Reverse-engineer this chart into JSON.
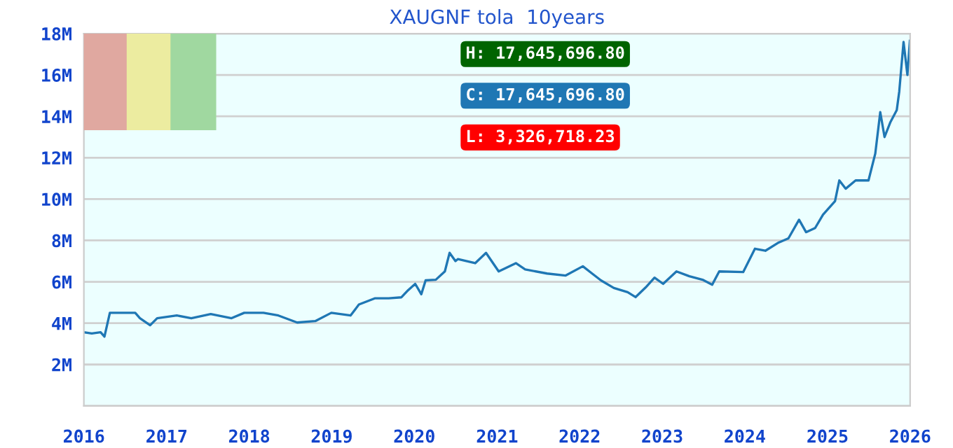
{
  "chart_data": {
    "type": "line",
    "title": "XAUGNF tola  10years",
    "x": [
      "2016-01-01",
      "2016-02-05",
      "2016-03-15",
      "2016-04-01",
      "2016-04-25",
      "2016-06-10",
      "2016-08-15",
      "2016-09-05",
      "2016-10-20",
      "2016-11-20",
      "2017-02-15",
      "2017-04-20",
      "2017-07-15",
      "2017-10-15",
      "2017-12-10",
      "2018-03-05",
      "2018-05-10",
      "2018-08-01",
      "2018-10-20",
      "2018-12-30",
      "2019-03-25",
      "2019-05-01",
      "2019-07-10",
      "2019-09-10",
      "2019-11-05",
      "2019-12-05",
      "2020-01-05",
      "2020-02-01",
      "2020-02-20",
      "2020-04-05",
      "2020-05-15",
      "2020-06-05",
      "2020-07-01",
      "2020-07-12",
      "2020-09-26",
      "2020-11-13",
      "2021-01-08",
      "2021-03-25",
      "2021-05-05",
      "2021-08-10",
      "2021-10-30",
      "2022-01-15",
      "2022-02-25",
      "2022-04-05",
      "2022-06-01",
      "2022-08-01",
      "2022-09-05",
      "2022-10-20",
      "2022-11-28",
      "2023-01-05",
      "2023-03-05",
      "2023-05-01",
      "2023-06-28",
      "2023-08-10",
      "2023-09-10",
      "2023-12-25",
      "2024-02-15",
      "2024-04-01",
      "2024-05-30",
      "2024-07-12",
      "2024-08-28",
      "2024-09-28",
      "2024-11-07",
      "2024-12-12",
      "2025-02-03",
      "2025-02-22",
      "2025-03-22",
      "2025-05-05",
      "2025-07-01",
      "2025-07-31",
      "2025-08-22",
      "2025-09-10",
      "2025-10-05",
      "2025-11-03",
      "2025-11-14",
      "2025-12-03",
      "2025-12-20",
      "2025-12-31"
    ],
    "series": [
      {
        "color": "#1f77b4",
        "values": [
          3.56,
          3.5,
          3.56,
          3.35,
          4.5,
          4.5,
          4.5,
          4.24,
          3.9,
          4.24,
          4.37,
          4.24,
          4.44,
          4.24,
          4.5,
          4.5,
          4.37,
          4.03,
          4.1,
          4.5,
          4.37,
          4.9,
          5.2,
          5.2,
          5.25,
          5.6,
          5.9,
          5.4,
          6.07,
          6.1,
          6.5,
          7.4,
          7.0,
          7.1,
          6.9,
          7.4,
          6.5,
          6.9,
          6.6,
          6.4,
          6.3,
          6.75,
          6.4,
          6.07,
          5.7,
          5.5,
          5.26,
          5.73,
          6.2,
          5.9,
          6.5,
          6.27,
          6.1,
          5.86,
          6.5,
          6.47,
          7.6,
          7.5,
          7.9,
          8.1,
          9.0,
          8.4,
          8.6,
          9.25,
          9.9,
          10.9,
          10.5,
          10.9,
          10.9,
          12.2,
          14.2,
          13.0,
          13.7,
          14.3,
          15.2,
          17.6,
          16.0,
          17.65
        ]
      }
    ],
    "xlim": [
      "2016-01-01",
      "2026-01-01"
    ],
    "xticks": [
      {
        "value": "2016-01-01",
        "label": "2016"
      },
      {
        "value": "2017-01-01",
        "label": "2017"
      },
      {
        "value": "2018-01-01",
        "label": "2018"
      },
      {
        "value": "2019-01-01",
        "label": "2019"
      },
      {
        "value": "2020-01-01",
        "label": "2020"
      },
      {
        "value": "2021-01-01",
        "label": "2021"
      },
      {
        "value": "2022-01-01",
        "label": "2022"
      },
      {
        "value": "2023-01-01",
        "label": "2023"
      },
      {
        "value": "2024-01-01",
        "label": "2024"
      },
      {
        "value": "2025-01-01",
        "label": "2025"
      },
      {
        "value": "2026-01-01",
        "label": "2026"
      }
    ],
    "ylim": [
      0,
      18
    ],
    "yticks": [
      {
        "value": 0,
        "label": null
      },
      {
        "value": 2,
        "label": "2M"
      },
      {
        "value": 4,
        "label": "4M"
      },
      {
        "value": 6,
        "label": "6M"
      },
      {
        "value": 8,
        "label": "8M"
      },
      {
        "value": 10,
        "label": "10M"
      },
      {
        "value": 12,
        "label": "12M"
      },
      {
        "value": 14,
        "label": "14M"
      },
      {
        "value": 16,
        "label": "16M"
      },
      {
        "value": 18,
        "label": "18M"
      }
    ],
    "grid": "y",
    "marker": "none",
    "line_style": "solid",
    "annotations": [
      "H: 17,645,696.80",
      "C: 17,645,696.80",
      "L: 3,326,718.23"
    ]
  }
}
